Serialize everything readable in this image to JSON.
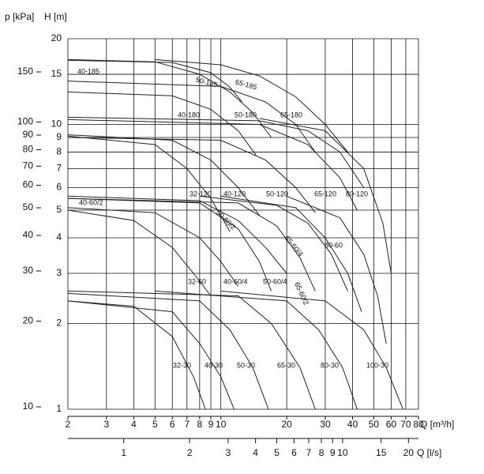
{
  "chart_data": {
    "type": "line",
    "y_label": "H [m]",
    "y2_label": "p [kPa]",
    "x_label": "Q [m³/h]",
    "x2_label": "Q [l/s]",
    "log_x": true,
    "log_y": true,
    "grid": true,
    "color": "#222222",
    "xlim": [
      2,
      80
    ],
    "xticks": [
      2,
      3,
      4,
      5,
      6,
      7,
      8,
      9,
      10,
      20,
      30,
      40,
      50,
      60,
      70,
      80
    ],
    "x2lim": [
      0.5556,
      22.22
    ],
    "x2ticks": [
      1,
      2,
      3,
      4,
      5,
      6,
      7,
      8,
      9,
      10,
      15,
      20
    ],
    "ylim": [
      1,
      20
    ],
    "yticks": [
      1,
      2,
      3,
      4,
      5,
      6,
      7,
      8,
      9,
      10,
      15,
      20
    ],
    "y2lim": [
      9.81,
      196.2
    ],
    "y2ticks": [
      10,
      20,
      30,
      40,
      50,
      60,
      70,
      80,
      90,
      100,
      150
    ],
    "series": [
      {
        "name": "40-185",
        "x": [
          2,
          6,
          9,
          11,
          12.5
        ],
        "values": [
          16.8,
          16.5,
          15.2,
          13.5,
          12
        ]
      },
      {
        "name": "50-185",
        "x": [
          2,
          5,
          8,
          11,
          14,
          17
        ],
        "values": [
          16.9,
          16.6,
          15,
          13,
          11,
          9
        ]
      },
      {
        "name": "65-185",
        "x": [
          5,
          10,
          15,
          22,
          30,
          38
        ],
        "values": [
          16.9,
          16.2,
          14.8,
          12.5,
          10,
          8
        ]
      },
      {
        "name": "40-180",
        "x": [
          2,
          6,
          9,
          12,
          14.5
        ],
        "values": [
          13,
          12.6,
          11.3,
          9.5,
          7.8
        ]
      },
      {
        "name": "50-180",
        "x": [
          2,
          10,
          16,
          22,
          27
        ],
        "values": [
          14.2,
          13.6,
          12,
          10,
          8
        ]
      },
      {
        "name": "65-180",
        "x": [
          2,
          15,
          25,
          35,
          45
        ],
        "values": [
          10.6,
          10.3,
          9.5,
          8,
          6
        ]
      },
      {
        "name": "32-120",
        "x": [
          2,
          5,
          7,
          9,
          11
        ],
        "values": [
          9.1,
          8.5,
          7,
          5.5,
          4.2
        ]
      },
      {
        "name": "40-120",
        "x": [
          2,
          6,
          9,
          12,
          15
        ],
        "values": [
          9.2,
          8.8,
          7.5,
          6,
          4.8
        ]
      },
      {
        "name": "50-120",
        "x": [
          2,
          10,
          16,
          22,
          27
        ],
        "values": [
          9,
          8.8,
          7.5,
          6,
          4.9
        ]
      },
      {
        "name": "65-120",
        "x": [
          2,
          15,
          25,
          35,
          42
        ],
        "values": [
          10.4,
          10,
          8.5,
          6.5,
          5
        ]
      },
      {
        "name": "80-120",
        "x": [
          15,
          30,
          45,
          55,
          60
        ],
        "values": [
          10.5,
          9.5,
          7,
          4.5,
          3
        ]
      },
      {
        "name": "40-60/2",
        "x": [
          2,
          5,
          8,
          10,
          12
        ],
        "values": [
          5.1,
          4.9,
          4,
          3.3,
          2.7
        ]
      },
      {
        "name": "32-60",
        "x": [
          2,
          4,
          6,
          7.5,
          9
        ],
        "values": [
          5,
          4.6,
          3.7,
          3,
          2.5
        ]
      },
      {
        "name": "50-60/2",
        "x": [
          2,
          8,
          12,
          16,
          20
        ],
        "values": [
          5.6,
          5.4,
          4.6,
          3.7,
          3
        ]
      },
      {
        "name": "40-60/4",
        "x": [
          2,
          8,
          12,
          15,
          17
        ],
        "values": [
          5.5,
          5.3,
          4.3,
          3.3,
          2.6
        ]
      },
      {
        "name": "50-60/4",
        "x": [
          2,
          12,
          18,
          23,
          27
        ],
        "values": [
          5.5,
          5.3,
          4.4,
          3.4,
          2.6
        ]
      },
      {
        "name": "65-60/4",
        "x": [
          8,
          18,
          25,
          32,
          38
        ],
        "values": [
          5.6,
          5.2,
          4.5,
          3.5,
          2.6
        ]
      },
      {
        "name": "65-60/2",
        "x": [
          10,
          22,
          30,
          38,
          44
        ],
        "values": [
          5.6,
          5.1,
          4,
          3,
          2.2
        ]
      },
      {
        "name": "80-60",
        "x": [
          20,
          35,
          45,
          52,
          57
        ],
        "values": [
          5.6,
          4.7,
          3.5,
          2.5,
          1.7
        ]
      },
      {
        "name": "32-30",
        "x": [
          2,
          4,
          6,
          7.5,
          8.5
        ],
        "values": [
          2.4,
          2.3,
          1.8,
          1.3,
          1
        ]
      },
      {
        "name": "40-30",
        "x": [
          2,
          6,
          8,
          10,
          11.5
        ],
        "values": [
          2.4,
          2.2,
          1.7,
          1.3,
          1
        ]
      },
      {
        "name": "50-30",
        "x": [
          2,
          8,
          11,
          14,
          16.5
        ],
        "values": [
          2.55,
          2.4,
          1.9,
          1.4,
          1
        ]
      },
      {
        "name": "65-30",
        "x": [
          2,
          12,
          17,
          23,
          27
        ],
        "values": [
          2.6,
          2.5,
          2,
          1.4,
          1
        ]
      },
      {
        "name": "80-30",
        "x": [
          5,
          20,
          28,
          36,
          42
        ],
        "values": [
          2.6,
          2.4,
          1.9,
          1.4,
          1
        ]
      },
      {
        "name": "100-30",
        "x": [
          10,
          30,
          45,
          57,
          68
        ],
        "values": [
          2.6,
          2.4,
          1.9,
          1.4,
          1
        ]
      }
    ]
  }
}
